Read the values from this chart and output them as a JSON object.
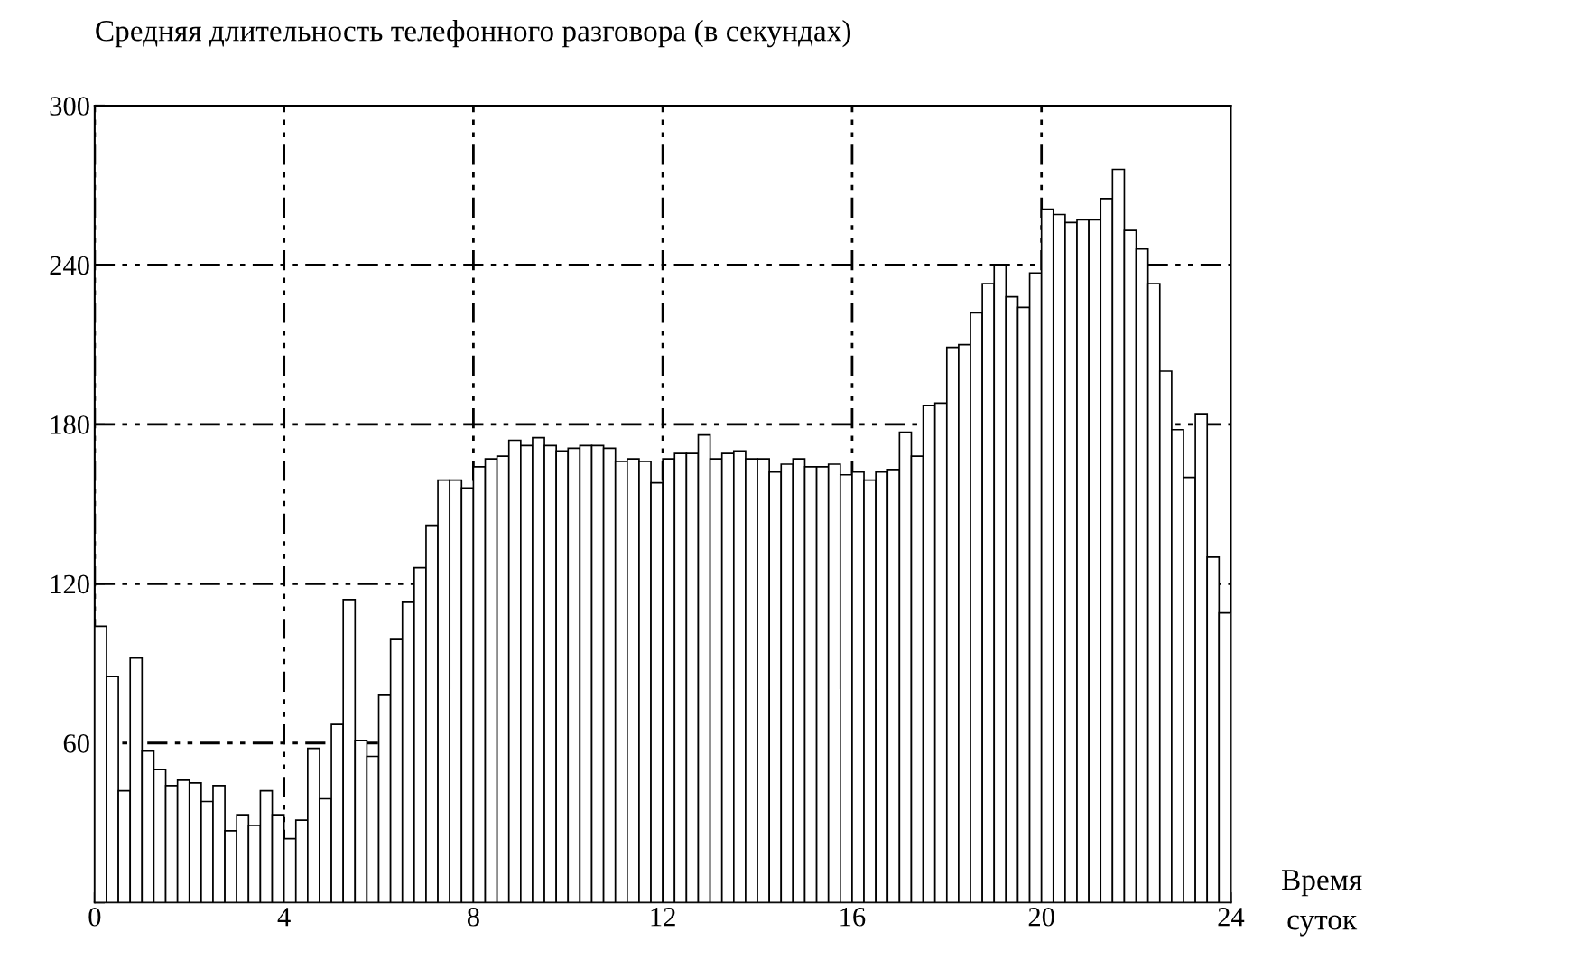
{
  "chart_data": {
    "type": "histogram",
    "ylabel": "Средняя длительность телефонного разговора (в секундах)",
    "xlabel": "Время суток",
    "bins": [
      0,
      0.25,
      0.5,
      0.75,
      1,
      1.25,
      1.5,
      1.75,
      2,
      2.25,
      2.5,
      2.75,
      3,
      3.25,
      3.5,
      3.75,
      4,
      4.25,
      4.5,
      4.75,
      5,
      5.25,
      5.5,
      5.75,
      6,
      6.25,
      6.5,
      6.75,
      7,
      7.25,
      7.5,
      7.75,
      8,
      8.25,
      8.5,
      8.75,
      9,
      9.25,
      9.5,
      9.75,
      10,
      10.25,
      10.5,
      10.75,
      11,
      11.25,
      11.5,
      11.75,
      12,
      12.25,
      12.5,
      12.75,
      13,
      13.25,
      13.5,
      13.75,
      14,
      14.25,
      14.5,
      14.75,
      15,
      15.25,
      15.5,
      15.75,
      16,
      16.25,
      16.5,
      16.75,
      17,
      17.25,
      17.5,
      17.75,
      18,
      18.25,
      18.5,
      18.75,
      19,
      19.25,
      19.5,
      19.75,
      20,
      20.25,
      20.5,
      20.75,
      21,
      21.25,
      21.5,
      21.75,
      22,
      22.25,
      22.5,
      22.75,
      23,
      23.25,
      23.5,
      23.75,
      24
    ],
    "values": [
      104,
      85,
      42,
      92,
      57,
      50,
      44,
      46,
      45,
      38,
      44,
      27,
      33,
      29,
      42,
      33,
      24,
      31,
      58,
      39,
      67,
      114,
      61,
      55,
      78,
      99,
      113,
      126,
      142,
      159,
      159,
      156,
      164,
      167,
      168,
      174,
      172,
      175,
      172,
      170,
      171,
      172,
      172,
      171,
      166,
      167,
      166,
      158,
      167,
      169,
      169,
      176,
      167,
      169,
      170,
      167,
      167,
      162,
      165,
      167,
      164,
      164,
      165,
      161,
      162,
      159,
      162,
      163,
      177,
      168,
      187,
      188,
      209,
      210,
      222,
      233,
      240,
      228,
      224,
      237,
      261,
      259,
      256,
      257,
      257,
      265,
      276,
      253,
      246,
      233,
      200,
      178,
      160,
      184,
      130,
      109
    ],
    "color": "#ffffff",
    "xlim": [
      0,
      24
    ],
    "ylim": [
      0,
      300
    ],
    "xticks": [
      {
        "value": 0,
        "label": "0"
      },
      4,
      8,
      12,
      16,
      20,
      24
    ],
    "yticks": [
      {
        "value": 0,
        "label": null
      },
      60,
      120,
      180,
      240,
      300
    ],
    "grid": true,
    "line_style": "dashed"
  }
}
